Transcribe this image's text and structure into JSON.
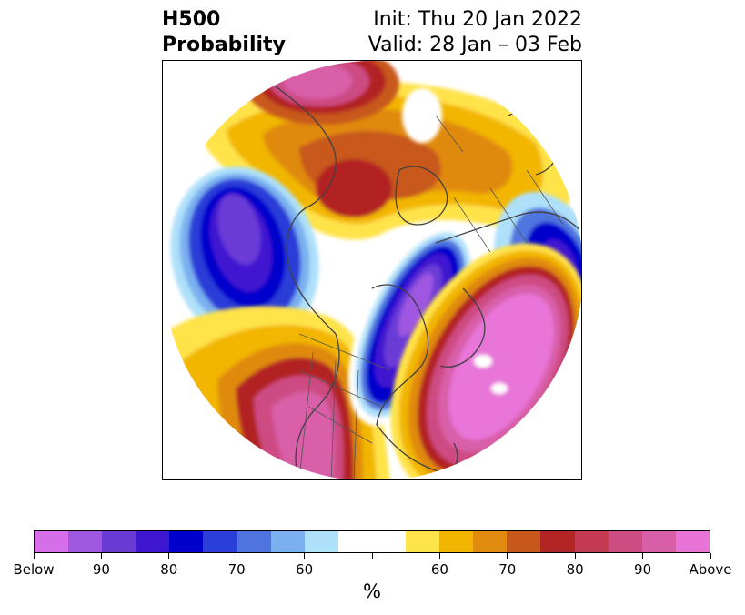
{
  "title": {
    "left_line1": "H500",
    "left_line2": "Probability",
    "right_line1": "Init: Thu 20 Jan 2022",
    "right_line2": "Valid: 28 Jan – 03 Feb"
  },
  "map": {
    "projection": "polar stereographic (north)",
    "field": "500 hPa height probability",
    "features": [
      "coastlines",
      "country-borders",
      "state-borders"
    ]
  },
  "colorbar": {
    "unit": "%",
    "below_colors": [
      "#d56ee8",
      "#9f57e0",
      "#6a3ad6",
      "#3f17d0",
      "#0000cc",
      "#2a3ed8",
      "#4f74e0",
      "#7ab0f0",
      "#aee0fa"
    ],
    "neutral_color": "#ffffff",
    "above_colors": [
      "#ffe34a",
      "#f2b600",
      "#e08a10",
      "#c8581a",
      "#b32424",
      "#c33a52",
      "#cd4c82",
      "#d85ea8",
      "#e874d8"
    ],
    "tick_labels": [
      "Below",
      "90",
      "80",
      "70",
      "60",
      "60",
      "70",
      "80",
      "90",
      "Above"
    ]
  }
}
